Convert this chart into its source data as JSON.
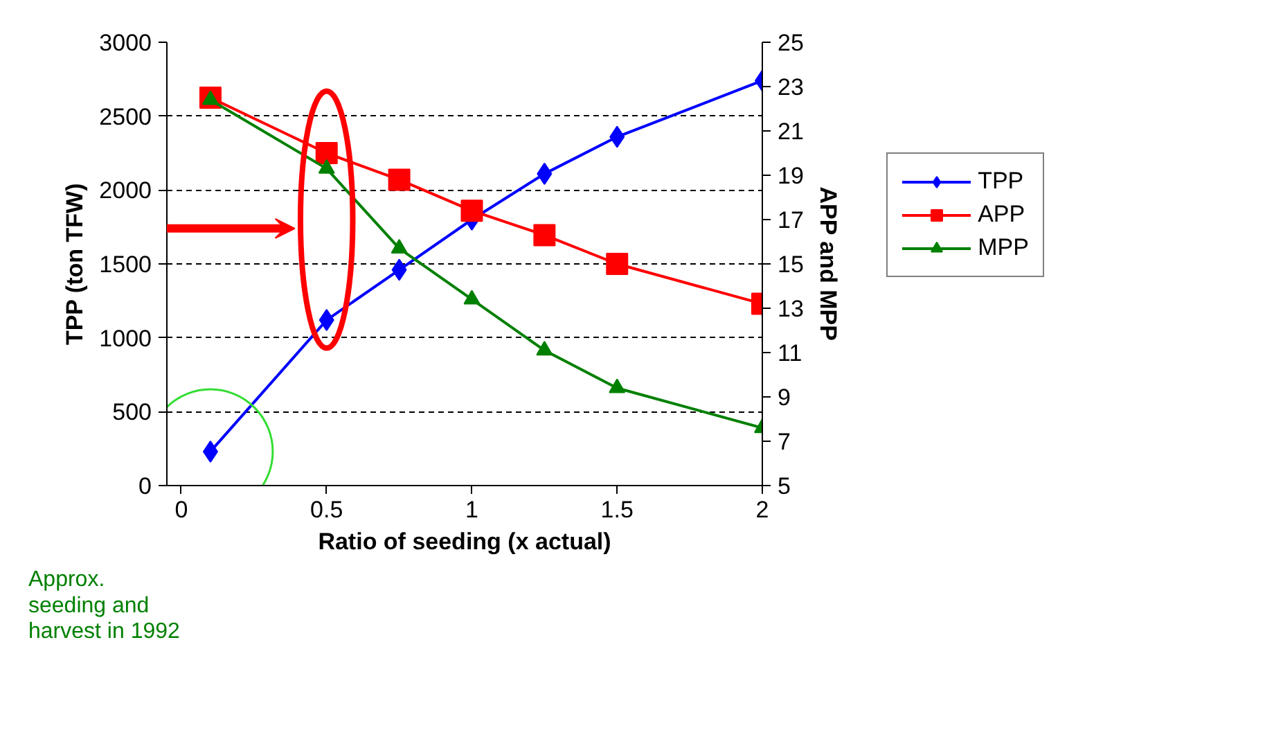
{
  "chart_data": {
    "type": "line",
    "xlabel": "Ratio of seeding (x actual)",
    "ylabel": "TPP (ton TFW)",
    "y2label": "APP and MPP",
    "x": [
      0.1,
      0.5,
      0.75,
      1,
      1.25,
      1.5,
      2
    ],
    "series": [
      {
        "name": "TPP",
        "color": "#0000ff",
        "marker": "diamond",
        "values": [
          230,
          1120,
          1460,
          1800,
          2110,
          2360,
          2740
        ]
      },
      {
        "name": "APP",
        "color": "#ff0000",
        "marker": "square",
        "axis": "y2",
        "values": [
          22.5,
          20.0,
          18.8,
          17.4,
          16.3,
          15.0,
          13.2
        ]
      },
      {
        "name": "MPP",
        "color": "#008000",
        "marker": "triangle",
        "axis": "y2",
        "values": [
          22.4,
          19.3,
          15.7,
          13.4,
          11.1,
          9.4,
          7.6
        ]
      }
    ],
    "xlim": [
      -0.05,
      2
    ],
    "xticks": [
      0,
      0.5,
      1,
      1.5,
      2
    ],
    "ylim": [
      0,
      3000
    ],
    "yticks": [
      0,
      500,
      1000,
      1500,
      2000,
      2500,
      3000
    ],
    "y2lim": [
      5,
      25
    ],
    "y2ticks": [
      5,
      7,
      9,
      11,
      13,
      15,
      17,
      19,
      21,
      23,
      25
    ],
    "grid": "y",
    "legend": "right",
    "line_style": "solid",
    "annotations": [
      "Approx.\nseeding and\nharvest in 1992"
    ]
  }
}
